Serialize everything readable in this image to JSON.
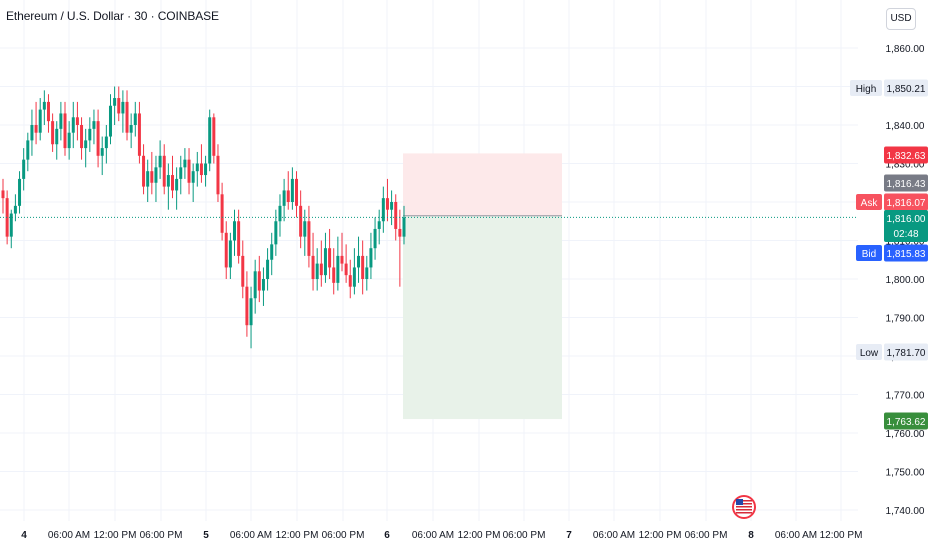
{
  "header": {
    "title": "Ethereum / U.S. Dollar · 30 · COINBASE",
    "currency_button": "USD"
  },
  "price_labels": {
    "high": {
      "label": "High",
      "value": "1,850.21"
    },
    "low": {
      "label": "Low",
      "value": "1,781.70"
    },
    "stop": {
      "value": "1,832.63",
      "color": "#f23645"
    },
    "entry": {
      "value": "1,816.43",
      "color": "#787b86"
    },
    "ask": {
      "label": "Ask",
      "value": "1,816.07",
      "color": "#f7525f"
    },
    "last": {
      "value": "1,816.00",
      "countdown": "02:48",
      "color": "#089981"
    },
    "bid": {
      "label": "Bid",
      "value": "1,815.83",
      "color": "#2962ff"
    },
    "target": {
      "value": "1,763.62",
      "color": "#388e3c"
    }
  },
  "chart_data": {
    "type": "candlestick",
    "title": "Ethereum / U.S. Dollar · 30 · COINBASE",
    "y_axis": {
      "ticks": [
        1740,
        1750,
        1760,
        1770,
        1780,
        1790,
        1800,
        1810,
        1820,
        1830,
        1840,
        1850,
        1860
      ],
      "tick_labels": [
        "1,740.00",
        "1,750.00",
        "1,760.00",
        "1,770.00",
        "1,780.00",
        "1,790.00",
        "1,800.00",
        "1,810.00",
        "1,820.00",
        "1,830.00",
        "1,840.00",
        "1,850.00",
        "1,860.00"
      ],
      "range": [
        1738,
        1864
      ]
    },
    "x_axis": {
      "tick_labels": [
        "4",
        "06:00 AM",
        "12:00 PM",
        "06:00 PM",
        "5",
        "06:00 AM",
        "12:00 PM",
        "06:00 PM",
        "6",
        "06:00 AM",
        "12:00 PM",
        "06:00 PM",
        "7",
        "06:00 AM",
        "12:00 PM",
        "06:00 PM",
        "8",
        "06:00 AM",
        "12:00 PM"
      ]
    },
    "candles": [
      [
        1823,
        1826,
        1817,
        1821
      ],
      [
        1821,
        1823,
        1809,
        1811
      ],
      [
        1811,
        1818,
        1808,
        1817
      ],
      [
        1817,
        1822,
        1815,
        1819
      ],
      [
        1819,
        1828,
        1817,
        1826
      ],
      [
        1826,
        1834,
        1823,
        1831
      ],
      [
        1831,
        1838,
        1828,
        1836
      ],
      [
        1836,
        1844,
        1832,
        1840
      ],
      [
        1840,
        1846,
        1835,
        1838
      ],
      [
        1838,
        1847,
        1836,
        1844
      ],
      [
        1844,
        1849,
        1840,
        1846
      ],
      [
        1846,
        1848,
        1838,
        1841
      ],
      [
        1841,
        1843,
        1833,
        1835
      ],
      [
        1835,
        1841,
        1831,
        1839
      ],
      [
        1839,
        1846,
        1836,
        1843
      ],
      [
        1843,
        1846,
        1832,
        1834
      ],
      [
        1834,
        1841,
        1831,
        1838
      ],
      [
        1838,
        1846,
        1834,
        1842
      ],
      [
        1842,
        1846,
        1836,
        1840
      ],
      [
        1840,
        1842,
        1831,
        1834
      ],
      [
        1834,
        1839,
        1829,
        1836
      ],
      [
        1836,
        1842,
        1833,
        1839
      ],
      [
        1839,
        1844,
        1835,
        1841
      ],
      [
        1841,
        1844,
        1829,
        1832
      ],
      [
        1832,
        1837,
        1827,
        1834
      ],
      [
        1834,
        1840,
        1830,
        1837
      ],
      [
        1837,
        1848,
        1835,
        1845
      ],
      [
        1845,
        1850,
        1840,
        1847
      ],
      [
        1847,
        1850,
        1841,
        1843
      ],
      [
        1843,
        1849,
        1838,
        1846
      ],
      [
        1846,
        1849,
        1836,
        1838
      ],
      [
        1838,
        1843,
        1834,
        1840
      ],
      [
        1840,
        1846,
        1837,
        1843
      ],
      [
        1843,
        1846,
        1830,
        1832
      ],
      [
        1832,
        1835,
        1822,
        1824
      ],
      [
        1824,
        1831,
        1820,
        1828
      ],
      [
        1828,
        1833,
        1822,
        1825
      ],
      [
        1825,
        1832,
        1820,
        1829
      ],
      [
        1829,
        1836,
        1826,
        1832
      ],
      [
        1832,
        1835,
        1822,
        1824
      ],
      [
        1824,
        1830,
        1818,
        1827
      ],
      [
        1827,
        1832,
        1821,
        1823
      ],
      [
        1823,
        1829,
        1818,
        1826
      ],
      [
        1826,
        1832,
        1822,
        1829
      ],
      [
        1829,
        1834,
        1826,
        1831
      ],
      [
        1831,
        1834,
        1822,
        1825
      ],
      [
        1825,
        1830,
        1820,
        1828
      ],
      [
        1828,
        1833,
        1824,
        1830
      ],
      [
        1830,
        1835,
        1825,
        1827
      ],
      [
        1827,
        1832,
        1824,
        1830
      ],
      [
        1830,
        1844,
        1828,
        1842
      ],
      [
        1842,
        1843,
        1830,
        1832
      ],
      [
        1832,
        1835,
        1820,
        1822
      ],
      [
        1822,
        1825,
        1810,
        1812
      ],
      [
        1812,
        1815,
        1800,
        1803
      ],
      [
        1803,
        1812,
        1800,
        1810
      ],
      [
        1810,
        1818,
        1806,
        1815
      ],
      [
        1815,
        1818,
        1804,
        1806
      ],
      [
        1806,
        1810,
        1795,
        1798
      ],
      [
        1798,
        1802,
        1785,
        1788
      ],
      [
        1788,
        1798,
        1782,
        1795
      ],
      [
        1795,
        1805,
        1791,
        1802
      ],
      [
        1802,
        1806,
        1794,
        1797
      ],
      [
        1797,
        1803,
        1793,
        1800
      ],
      [
        1800,
        1808,
        1797,
        1805
      ],
      [
        1805,
        1812,
        1801,
        1809
      ],
      [
        1809,
        1818,
        1806,
        1815
      ],
      [
        1815,
        1822,
        1811,
        1819
      ],
      [
        1819,
        1826,
        1815,
        1823
      ],
      [
        1823,
        1828,
        1818,
        1820
      ],
      [
        1820,
        1829,
        1818,
        1826
      ],
      [
        1826,
        1828,
        1816,
        1819
      ],
      [
        1819,
        1823,
        1808,
        1811
      ],
      [
        1811,
        1818,
        1806,
        1815
      ],
      [
        1815,
        1819,
        1803,
        1806
      ],
      [
        1806,
        1812,
        1797,
        1800
      ],
      [
        1800,
        1808,
        1797,
        1804
      ],
      [
        1804,
        1810,
        1798,
        1801
      ],
      [
        1801,
        1812,
        1799,
        1808
      ],
      [
        1808,
        1813,
        1800,
        1803
      ],
      [
        1803,
        1808,
        1796,
        1799
      ],
      [
        1799,
        1811,
        1797,
        1806
      ],
      [
        1806,
        1812,
        1802,
        1804
      ],
      [
        1804,
        1809,
        1799,
        1801
      ],
      [
        1801,
        1805,
        1795,
        1798
      ],
      [
        1798,
        1808,
        1796,
        1803
      ],
      [
        1803,
        1811,
        1799,
        1806
      ],
      [
        1806,
        1810,
        1796,
        1800
      ],
      [
        1800,
        1806,
        1797,
        1803
      ],
      [
        1803,
        1812,
        1800,
        1808
      ],
      [
        1808,
        1816,
        1805,
        1813
      ],
      [
        1813,
        1818,
        1809,
        1815
      ],
      [
        1815,
        1824,
        1812,
        1821
      ],
      [
        1821,
        1826,
        1815,
        1818
      ],
      [
        1818,
        1823,
        1814,
        1820
      ],
      [
        1820,
        1822,
        1810,
        1813
      ],
      [
        1813,
        1818,
        1798,
        1811
      ],
      [
        1811,
        1819,
        1809,
        1816
      ]
    ]
  },
  "position": {
    "entry": 1816.43,
    "stop": 1832.63,
    "target": 1763.62,
    "profit_color": "#e8f2e9",
    "loss_color": "#fde9ea"
  },
  "current_price": 1816.0,
  "flag_icon": "us-flag-icon"
}
